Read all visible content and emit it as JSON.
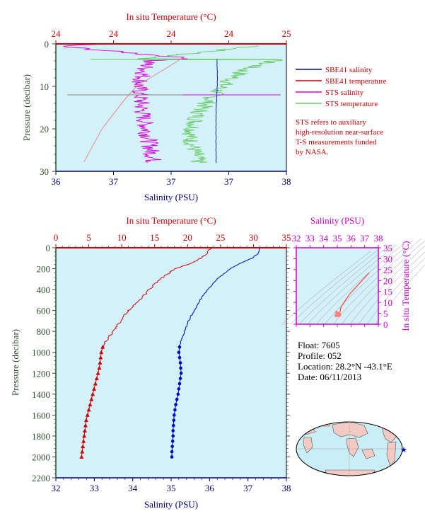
{
  "info": {
    "float": "Float:  7605",
    "profile": "Profile:  052",
    "location": "Location:  28.2°N  -43.1°E",
    "date": "Date:  06/11/2013",
    "note": [
      "STS refers to auxiliary",
      "high-resolution near-surface",
      "T-S measurements funded",
      "by NASA."
    ]
  },
  "legend": [
    {
      "label": "SBE41 salinity",
      "color": "#0000cc"
    },
    {
      "label": "SBE41 temperature",
      "color": "#cc0000"
    },
    {
      "label": "STS salinity",
      "color": "#dd00dd"
    },
    {
      "label": "STS temperature",
      "color": "#66cc66"
    }
  ],
  "colors": {
    "panel_bg": "#d4f0f8",
    "salinity": "#0000cc",
    "temperature": "#cc0000",
    "sts_salinity": "#dd00dd",
    "sts_temperature": "#66cc66",
    "axis_red": "#cc0000",
    "axis_blue": "#000080",
    "axis_green": "#2e4f2e",
    "axis_magenta": "#cc00cc"
  },
  "chart_data": [
    {
      "id": "top",
      "type": "line",
      "title": "In situ Temperature (°C)",
      "xlabel": "Salinity (PSU)",
      "ylabel": "Pressure (decibar)",
      "xlim_salinity": [
        36,
        38
      ],
      "xlim_temperature": [
        24,
        25
      ],
      "ylim": [
        30,
        0
      ],
      "salinity_ticks": [
        "36",
        "37",
        "37",
        "37",
        "38"
      ],
      "temperature_ticks": [
        "24",
        "24",
        "24",
        "24",
        "25"
      ],
      "pressure_ticks": [
        0,
        10,
        20,
        30
      ],
      "series": [
        {
          "name": "SBE41 salinity",
          "x": [
            37.4,
            37.4,
            37.39,
            37.39,
            37.39
          ],
          "y": [
            3.5,
            10,
            16,
            22,
            28
          ]
        },
        {
          "name": "SBE41 temperature",
          "x": [
            24.55,
            24.5,
            24.35,
            24.3,
            24.2,
            24.12
          ],
          "y": [
            3.3,
            5,
            10,
            13,
            20,
            28
          ]
        },
        {
          "name": "STS salinity",
          "x": [
            36.35,
            36.0,
            37.2,
            36.8,
            36.72,
            36.75,
            36.8,
            36.85
          ],
          "y": [
            0.1,
            0.5,
            3.5,
            4,
            10,
            16,
            22,
            28
          ]
        },
        {
          "name": "STS temperature",
          "x": [
            24.88,
            24.38,
            24.96,
            24.82,
            24.72,
            24.62,
            24.58,
            24.62
          ],
          "y": [
            0.5,
            3.5,
            3.6,
            6,
            10,
            16,
            22,
            28
          ]
        }
      ]
    },
    {
      "id": "main",
      "type": "line",
      "title": "In situ Temperature (°C)",
      "xlabel": "Salinity (PSU)",
      "ylabel": "Pressure (decibar)",
      "xlim_salinity": [
        32,
        38
      ],
      "xlim_temperature": [
        0,
        35
      ],
      "ylim": [
        2200,
        0
      ],
      "salinity_ticks": [
        32,
        33,
        34,
        35,
        36,
        37,
        38
      ],
      "temperature_ticks": [
        0,
        5,
        10,
        15,
        20,
        25,
        30,
        35
      ],
      "pressure_ticks": [
        0,
        200,
        400,
        600,
        800,
        1000,
        1200,
        1400,
        1600,
        1800,
        2000,
        2200
      ],
      "series": [
        {
          "name": "SBE41 temperature",
          "pressure": [
            0,
            10,
            60,
            100,
            150,
            200,
            300,
            400,
            500,
            600,
            700,
            800,
            900,
            950,
            1000,
            1050,
            1100,
            1150,
            1200,
            1250,
            1300,
            1350,
            1400,
            1450,
            1500,
            1550,
            1600,
            1650,
            1700,
            1750,
            1800,
            1850,
            1900,
            1950,
            2000
          ],
          "values": [
            23.6,
            23.4,
            22.8,
            22.0,
            20.5,
            18.2,
            15.8,
            14.2,
            12.8,
            11.0,
            9.8,
            8.7,
            7.5,
            7.1,
            6.9,
            6.8,
            6.7,
            6.6,
            6.4,
            6.2,
            6.0,
            5.8,
            5.6,
            5.4,
            5.2,
            5.0,
            4.8,
            4.6,
            4.5,
            4.4,
            4.3,
            4.2,
            4.1,
            4.0,
            3.9
          ]
        },
        {
          "name": "SBE41 salinity",
          "pressure": [
            0,
            10,
            60,
            100,
            150,
            200,
            300,
            400,
            500,
            600,
            700,
            800,
            900,
            950,
            1000,
            1050,
            1100,
            1150,
            1200,
            1250,
            1300,
            1350,
            1400,
            1450,
            1500,
            1550,
            1600,
            1650,
            1700,
            1750,
            1800,
            1850,
            1900,
            1950,
            2000
          ],
          "values": [
            37.33,
            37.3,
            37.25,
            37.1,
            36.8,
            36.55,
            36.2,
            35.95,
            35.75,
            35.6,
            35.45,
            35.35,
            35.25,
            35.22,
            35.2,
            35.22,
            35.24,
            35.25,
            35.26,
            35.24,
            35.22,
            35.2,
            35.18,
            35.15,
            35.12,
            35.1,
            35.08,
            35.07,
            35.06,
            35.05,
            35.05,
            35.04,
            35.03,
            35.02,
            35.02
          ]
        }
      ]
    },
    {
      "id": "ts",
      "type": "line",
      "title": "Salinity (PSU)",
      "ylabel": "In situ Temperature (°C)",
      "xlim": [
        32,
        38
      ],
      "ylim": [
        0,
        35
      ],
      "x_ticks": [
        32,
        33,
        34,
        35,
        36,
        37,
        38
      ],
      "y_ticks": [
        0,
        5,
        10,
        15,
        20,
        25,
        30,
        35
      ],
      "series": [
        {
          "name": "SBE41",
          "salinity": [
            37.33,
            37.1,
            36.55,
            36.2,
            35.95,
            35.6,
            35.35,
            35.22,
            35.24,
            35.2,
            35.12,
            35.06,
            35.02
          ],
          "temperature": [
            23.6,
            22.0,
            18.2,
            15.8,
            14.2,
            11.0,
            8.7,
            7.1,
            6.7,
            5.8,
            5.2,
            4.5,
            3.9
          ]
        }
      ]
    }
  ]
}
